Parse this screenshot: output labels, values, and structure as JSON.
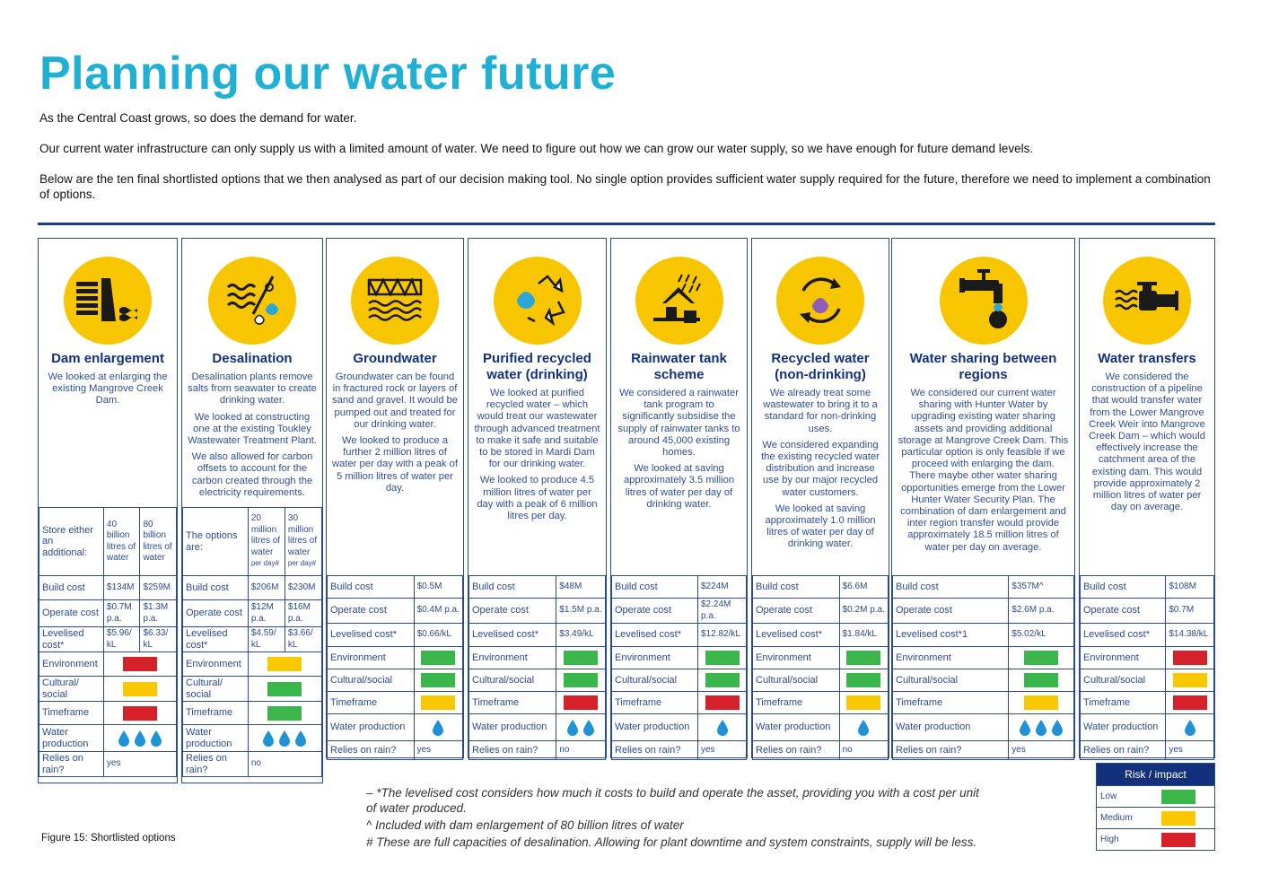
{
  "page": {
    "title": "Planning our water future",
    "intro": [
      "As the Central Coast grows, so does the demand for water.",
      "Our current water infrastructure can only supply us with a limited amount of water. We need to figure out how we can grow our water supply, so we have enough for future demand levels.",
      "Below are the ten final shortlisted options that we then analysed as part of our decision making tool. No single option provides sufficient water supply required for the future, therefore we need to implement a combination of options."
    ],
    "figure_caption": "Figure 15:   Shortlisted options"
  },
  "colors": {
    "title": "#1fb0d3",
    "navy": "#12317a",
    "icon_bg": "#f7c600",
    "low": "#3bb64a",
    "medium": "#f9c800",
    "high": "#d7212a",
    "drop": "#1f93d3"
  },
  "labels": {
    "build_cost": "Build cost",
    "operate_cost": "Operate cost",
    "levelised_cost": "Levelised cost*",
    "environment": "Environment",
    "cultural": "Cultural/social",
    "cultural_split": "Cultural/ social",
    "timeframe": "Timeframe",
    "water_production": "Water production",
    "relies_on_rain": "Relies on rain?"
  },
  "options": [
    {
      "title": "Dam enlargement",
      "icon": "dam-icon",
      "desc": [
        "We looked at enlarging the existing Mangrove Creek Dam."
      ],
      "option_label": "Store either an additional:",
      "sub": [
        {
          "text": "40 billion litres of water"
        },
        {
          "text": "80 billion litres of water"
        }
      ],
      "build": [
        "$134M",
        "$259M"
      ],
      "operate": [
        "$0.7M p.a.",
        "$1.3M p.a."
      ],
      "levelised": [
        "$5.96/ kL",
        "$6.33/ kL"
      ],
      "environment": "high",
      "cultural": "medium",
      "timeframe": "high",
      "drops": 3,
      "rain": "yes"
    },
    {
      "title": "Desalination",
      "icon": "desalination-icon",
      "desc": [
        "Desalination plants remove salts from seawater to create drinking water.",
        "We looked at constructing one at the existing Toukley Wastewater Treatment Plant.",
        "We also allowed for carbon offsets to account for the carbon created through the electricity requirements."
      ],
      "option_label": "The options are:",
      "sub": [
        {
          "text": "20 million litres of water",
          "note": "per day#"
        },
        {
          "text": "30 million litres of water",
          "note": "per day#"
        }
      ],
      "build": [
        "$206M",
        "$230M"
      ],
      "operate": [
        "$12M p.a.",
        "$16M p.a."
      ],
      "levelised": [
        "$4.59/ kL",
        "$3.66/ kL"
      ],
      "environment": "medium",
      "cultural": "low",
      "timeframe": "low",
      "drops": 3,
      "rain": "no"
    },
    {
      "title": "Groundwater",
      "icon": "groundwater-icon",
      "desc": [
        "Groundwater can be found in fractured rock or layers of sand and gravel. It would be pumped out and treated for our drinking water.",
        "We looked to produce a further 2 million litres of water per day with a peak of 5 million litres of water per day."
      ],
      "build": "$0.5M",
      "operate": "$0.4M p.a.",
      "levelised": "$0.66/kL",
      "environment": "low",
      "cultural": "low",
      "timeframe": "medium",
      "drops": 1,
      "rain": "yes"
    },
    {
      "title": "Purified recycled water (drinking)",
      "icon": "recycled-drinking-icon",
      "desc": [
        "We looked at purified recycled water – which would treat our wastewater through advanced treatment to make it safe and suitable to be stored in Mardi Dam for our drinking water.",
        "We looked to produce 4.5 million litres of water per day with a peak of 6 million litres per day."
      ],
      "build": "$48M",
      "operate": "$1.5M p.a.",
      "levelised": "$3.49/kL",
      "environment": "low",
      "cultural": "low",
      "timeframe": "high",
      "drops": 2,
      "rain": "no"
    },
    {
      "title": "Rainwater tank scheme",
      "icon": "rainwater-tank-icon",
      "desc": [
        "We considered a rainwater tank program to significantly subsidise the supply of rainwater tanks to around 45,000 existing homes.",
        "We looked at saving approximately 3.5 million litres of water per day of drinking water."
      ],
      "build": "$224M",
      "operate": "$2.24M p.a.",
      "levelised": "$12.82/kL",
      "environment": "low",
      "cultural": "low",
      "timeframe": "high",
      "drops": 1,
      "rain": "yes"
    },
    {
      "title": "Recycled water (non-drinking)",
      "icon": "recycled-non-drinking-icon",
      "desc": [
        "We already treat some wastewater to bring it to a standard for non-drinking uses.",
        "We considered expanding the existing recycled water distribution and increase use by our major recycled water customers.",
        "We looked at saving approximately 1.0 million litres of water per day of drinking water."
      ],
      "build": "$6.6M",
      "operate": "$0.2M p.a.",
      "levelised": "$1.84/kL",
      "environment": "low",
      "cultural": "low",
      "timeframe": "medium",
      "drops": 1,
      "rain": "no"
    },
    {
      "title": "Water sharing between regions",
      "icon": "water-sharing-icon",
      "desc": [
        "We considered our current water sharing with Hunter Water by upgrading existing water sharing assets and providing additional storage at Mangrove Creek Dam. This particular option is only feasible if we proceed with enlarging the dam. There maybe other water sharing opportunities emerge from the Lower Hunter Water Security Plan. The combination of dam enlargement and inter region transfer  would provide approximately 18.5 million litres of water per day on average."
      ],
      "build": "$357M^",
      "operate": "$2.6M p.a.",
      "levelised": "$5.02/kL",
      "levelised_label": "Levelised cost*1",
      "environment": "low",
      "cultural": "low",
      "timeframe": "medium",
      "drops": 3,
      "rain": "yes"
    },
    {
      "title": "Water transfers",
      "icon": "water-transfers-icon",
      "desc": [
        "We considered the construction of a pipeline that would transfer water from the Lower Mangrove Creek Weir into Mangrove Creek Dam – which would effectively increase the catchment area of the existing dam. This would provide approximately 2 million litres of water per day on average."
      ],
      "build": "$108M",
      "operate": "$0.7M",
      "levelised": "$14.38/kL",
      "environment": "high",
      "cultural": "medium",
      "timeframe": "high",
      "drops": 1,
      "rain": "yes"
    }
  ],
  "footnotes": [
    "–   *The levelised cost considers how much it costs to build and operate the asset, providing you with a cost per unit of water produced.",
    "^   Included with dam enlargement of 80 billion litres of water",
    "#   These are full capacities of desalination. Allowing for plant downtime and system constraints, supply will be less."
  ],
  "legend": {
    "title": "Risk / impact",
    "items": [
      {
        "label": "Low",
        "level": "low"
      },
      {
        "label": "Medium",
        "level": "medium"
      },
      {
        "label": "High",
        "level": "high"
      }
    ]
  }
}
